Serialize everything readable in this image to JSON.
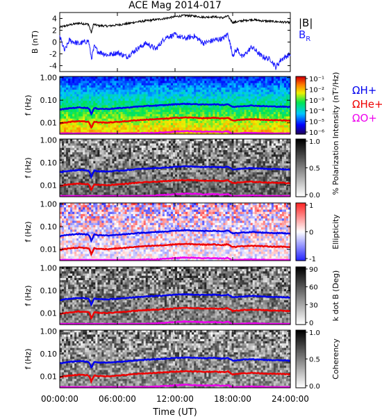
{
  "title": "ACE Mag 2014-017",
  "xlabel": "Time (UT)",
  "x_ticks": [
    "00:00:00",
    "06:00:00",
    "12:00:00",
    "18:00:00",
    "24:00:00"
  ],
  "colors": {
    "B_total": "#000000",
    "B_R": "#1a1aff",
    "H_plus": "#0000ee",
    "He_plus": "#ee0000",
    "O_plus": "#ee00ee"
  },
  "chart_data": [
    {
      "type": "line",
      "ylabel": "B (nT)",
      "xlim": [
        0,
        24
      ],
      "ylim": [
        -5,
        5
      ],
      "y_ticks": [
        "-4",
        "-2",
        "0",
        "2",
        "4"
      ],
      "legend": [
        "|B|",
        "B_R"
      ],
      "series": [
        {
          "name": "|B|",
          "x": [
            0,
            1,
            2,
            3,
            3.3,
            3.5,
            4,
            5,
            6,
            7,
            8,
            9,
            10,
            11,
            12,
            13,
            14,
            15,
            16,
            17,
            17.5,
            18,
            19,
            20,
            21,
            22,
            23,
            24
          ],
          "y": [
            2.5,
            2.9,
            3.2,
            3.0,
            1.5,
            3.0,
            2.8,
            2.7,
            2.9,
            3.1,
            3.4,
            3.6,
            3.8,
            4.0,
            4.3,
            4.5,
            4.4,
            4.2,
            4.3,
            4.1,
            4.4,
            3.3,
            3.6,
            3.8,
            3.6,
            3.5,
            3.4,
            3.3
          ]
        },
        {
          "name": "B_R",
          "x": [
            0,
            0.5,
            1,
            2,
            3,
            3.3,
            3.6,
            4,
            5,
            6,
            7,
            8,
            9,
            10,
            11,
            12,
            13,
            14,
            15,
            16,
            17,
            17.5,
            18,
            18.5,
            19,
            20,
            21,
            22,
            22.5,
            23,
            24
          ],
          "y": [
            1.0,
            -1.5,
            0.3,
            -0.3,
            0.2,
            -2.8,
            -0.8,
            -1.6,
            -2.2,
            -1.8,
            -2.5,
            -1.2,
            -0.2,
            -1.2,
            0.8,
            1.2,
            0.6,
            1.0,
            -0.2,
            0.3,
            0.6,
            1.4,
            -2.2,
            -1.2,
            -2.6,
            -0.8,
            -2.4,
            -3.0,
            -4.3,
            -3.0,
            -2.0
          ]
        }
      ]
    },
    {
      "type": "heatmap",
      "ylabel": "f (Hz)",
      "y_ticks": [
        "0.01",
        "0.10",
        "1.00"
      ],
      "colorbar_label": "Intensity (nT²/Hz)",
      "colorbar_ticks": [
        "10⁻¹",
        "10⁻²",
        "10⁻³",
        "10⁻⁴",
        "10⁻⁵",
        "10⁻⁶"
      ],
      "legend": [
        "ΩH+",
        "ΩHe+",
        "ΩO+"
      ]
    },
    {
      "type": "heatmap",
      "ylabel": "f (Hz)",
      "y_ticks": [
        "0.01",
        "0.10",
        "1.00"
      ],
      "colorbar_label": "% Polarization",
      "colorbar_ticks": [
        "1.0",
        "0.5",
        "0.0"
      ]
    },
    {
      "type": "heatmap",
      "ylabel": "f (Hz)",
      "y_ticks": [
        "0.01",
        "0.10",
        "1.00"
      ],
      "colorbar_label": "Ellipticity",
      "colorbar_ticks": [
        "1",
        "0",
        "-1"
      ]
    },
    {
      "type": "heatmap",
      "ylabel": "f (Hz)",
      "y_ticks": [
        "0.01",
        "0.10",
        "1.00"
      ],
      "colorbar_label": "k dot B (Deg)",
      "colorbar_ticks": [
        "90",
        "60",
        "30",
        "0"
      ]
    },
    {
      "type": "heatmap",
      "ylabel": "f (Hz)",
      "y_ticks": [
        "0.01",
        "0.10",
        "1.00"
      ],
      "colorbar_label": "Coherency",
      "colorbar_ticks": [
        "1.0",
        "0.5",
        "0.0"
      ]
    }
  ],
  "gyrofrequencies": {
    "x": [
      0,
      1,
      2,
      3,
      3.3,
      3.6,
      4,
      5,
      6,
      7,
      8,
      9,
      10,
      11,
      12,
      13,
      14,
      15,
      16,
      17,
      17.5,
      18,
      19,
      20,
      21,
      22,
      23,
      24
    ],
    "H_plus_hz": [
      0.038,
      0.044,
      0.048,
      0.045,
      0.023,
      0.045,
      0.042,
      0.041,
      0.044,
      0.047,
      0.052,
      0.055,
      0.058,
      0.061,
      0.066,
      0.069,
      0.067,
      0.064,
      0.066,
      0.062,
      0.067,
      0.05,
      0.055,
      0.058,
      0.055,
      0.053,
      0.052,
      0.05
    ],
    "He_plus_hz": [
      0.0095,
      0.011,
      0.012,
      0.0112,
      0.0058,
      0.0112,
      0.0105,
      0.0102,
      0.011,
      0.0118,
      0.013,
      0.0138,
      0.0145,
      0.0152,
      0.0165,
      0.0172,
      0.0168,
      0.016,
      0.0165,
      0.0155,
      0.0168,
      0.0125,
      0.0138,
      0.0145,
      0.0138,
      0.0132,
      0.013,
      0.0125
    ],
    "O_plus_hz": [
      0.0024,
      0.0028,
      0.003,
      0.0028,
      0.0015,
      0.0028,
      0.0026,
      0.0026,
      0.0028,
      0.003,
      0.0033,
      0.0035,
      0.0036,
      0.0038,
      0.0041,
      0.0043,
      0.0042,
      0.004,
      0.0041,
      0.0039,
      0.0042,
      0.0031,
      0.0035,
      0.0036,
      0.0035,
      0.0033,
      0.0033,
      0.0031
    ]
  }
}
